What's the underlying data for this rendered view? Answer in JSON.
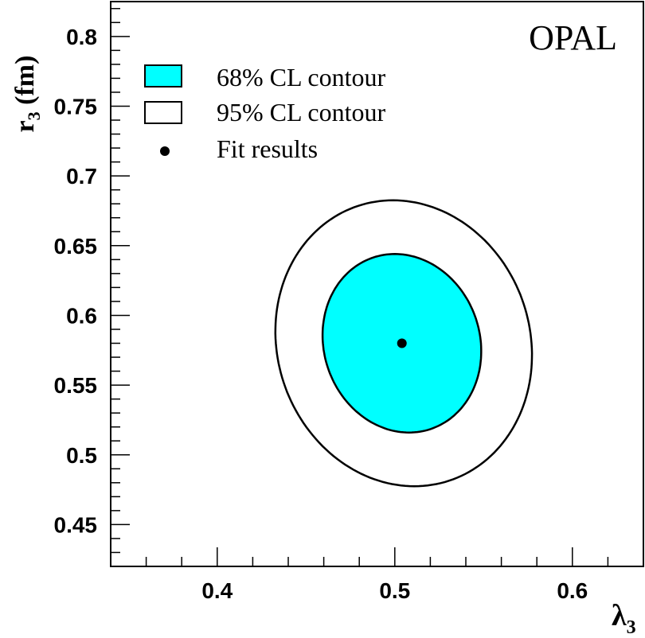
{
  "chart_data": {
    "type": "contour",
    "experiment_label": "OPAL",
    "xlabel": "λ",
    "xlabel_sub": "3",
    "ylabel": "r",
    "ylabel_sub": "3",
    "ylabel_unit": " (fm)",
    "xlim": [
      0.34,
      0.64
    ],
    "ylim": [
      0.42,
      0.825
    ],
    "x_ticks": [
      0.4,
      0.5,
      0.6
    ],
    "x_tick_labels": [
      "0.4",
      "0.5",
      "0.6"
    ],
    "y_ticks": [
      0.45,
      0.5,
      0.55,
      0.6,
      0.65,
      0.7,
      0.75,
      0.8
    ],
    "y_tick_labels": [
      "0.45",
      "0.5",
      "0.55",
      "0.6",
      "0.65",
      "0.7",
      "0.75",
      "0.8"
    ],
    "x_minor_step": 0.02,
    "y_minor_step": 0.01,
    "grid": false,
    "legend_position": "top-left",
    "legend": [
      {
        "label": "68% CL contour",
        "style": "filled",
        "color": "#00ffff"
      },
      {
        "label": "95% CL contour",
        "style": "outline",
        "color": "#000000"
      },
      {
        "label": "Fit results",
        "style": "marker",
        "color": "#000000"
      }
    ],
    "fit_result": {
      "x": 0.504,
      "y": 0.58
    },
    "contours": [
      {
        "name": "95% CL",
        "cx": 0.505,
        "cy": 0.58,
        "rx": 0.072,
        "ry": 0.1025,
        "tilt": 0.006,
        "fill": "none"
      },
      {
        "name": "68% CL",
        "cx": 0.504,
        "cy": 0.58,
        "rx": 0.0445,
        "ry": 0.064,
        "tilt": 0.004,
        "fill": "#00ffff"
      }
    ]
  }
}
